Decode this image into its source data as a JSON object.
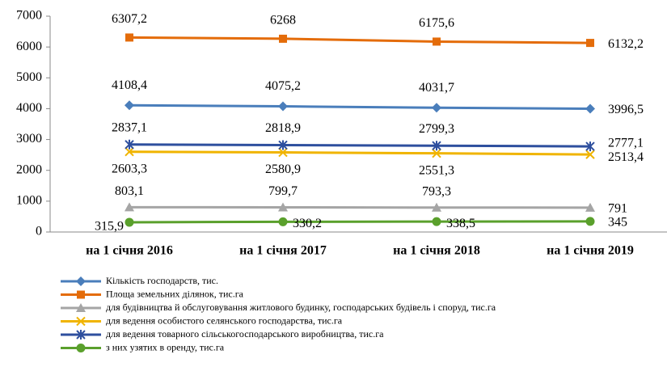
{
  "chart_data": {
    "type": "line",
    "categories": [
      "на 1 січня 2016",
      "на 1 січня 2017",
      "на 1 січня 2018",
      "на 1 січня 2019"
    ],
    "ylim": [
      0,
      7000
    ],
    "yticks": [
      0,
      1000,
      2000,
      3000,
      4000,
      5000,
      6000,
      7000
    ],
    "legend": "bottom",
    "series": [
      {
        "name": "Кількість господарств, тис.",
        "color": "#4a7ebb",
        "marker": "diamond",
        "values": [
          4108.4,
          4075.2,
          4031.7,
          3996.5
        ],
        "value_labels": [
          "4108,4",
          "4075,2",
          "4031,7",
          "3996,5"
        ]
      },
      {
        "name": "Площа земельних ділянок, тис.га",
        "color": "#e46c0a",
        "marker": "square",
        "values": [
          6307.2,
          6268,
          6175.6,
          6132.2
        ],
        "value_labels": [
          "6307,2",
          "6268",
          "6175,6",
          "6132,2"
        ]
      },
      {
        "name": "для будівництва й обслуговування житлового будинку, господарських будівель і споруд, тис.га",
        "color": "#a5a5a5",
        "marker": "triangle",
        "values": [
          803.1,
          799.7,
          793.3,
          791
        ],
        "value_labels": [
          "803,1",
          "799,7",
          "793,3",
          "791"
        ]
      },
      {
        "name": "для ведення особистого селянського господарства, тис.га",
        "color": "#f0b400",
        "marker": "x",
        "values": [
          2603.3,
          2580.9,
          2551.3,
          2513.4
        ],
        "value_labels": [
          "2603,3",
          "2580,9",
          "2551,3",
          "2513,4"
        ]
      },
      {
        "name": "для ведення товарного сільськогосподарського виробництва, тис.га",
        "color": "#2e4f9e",
        "marker": "star",
        "values": [
          2837.1,
          2818.9,
          2799.3,
          2777.1
        ],
        "value_labels": [
          "2837,1",
          "2818,9",
          "2799,3",
          "2777,1"
        ]
      },
      {
        "name": "з них узятих в оренду,  тис.га",
        "color": "#5aa02c",
        "marker": "circle",
        "values": [
          315.9,
          330.2,
          338.5,
          345
        ],
        "value_labels": [
          "315,9",
          "330,2",
          "338,5",
          "345"
        ]
      }
    ]
  }
}
